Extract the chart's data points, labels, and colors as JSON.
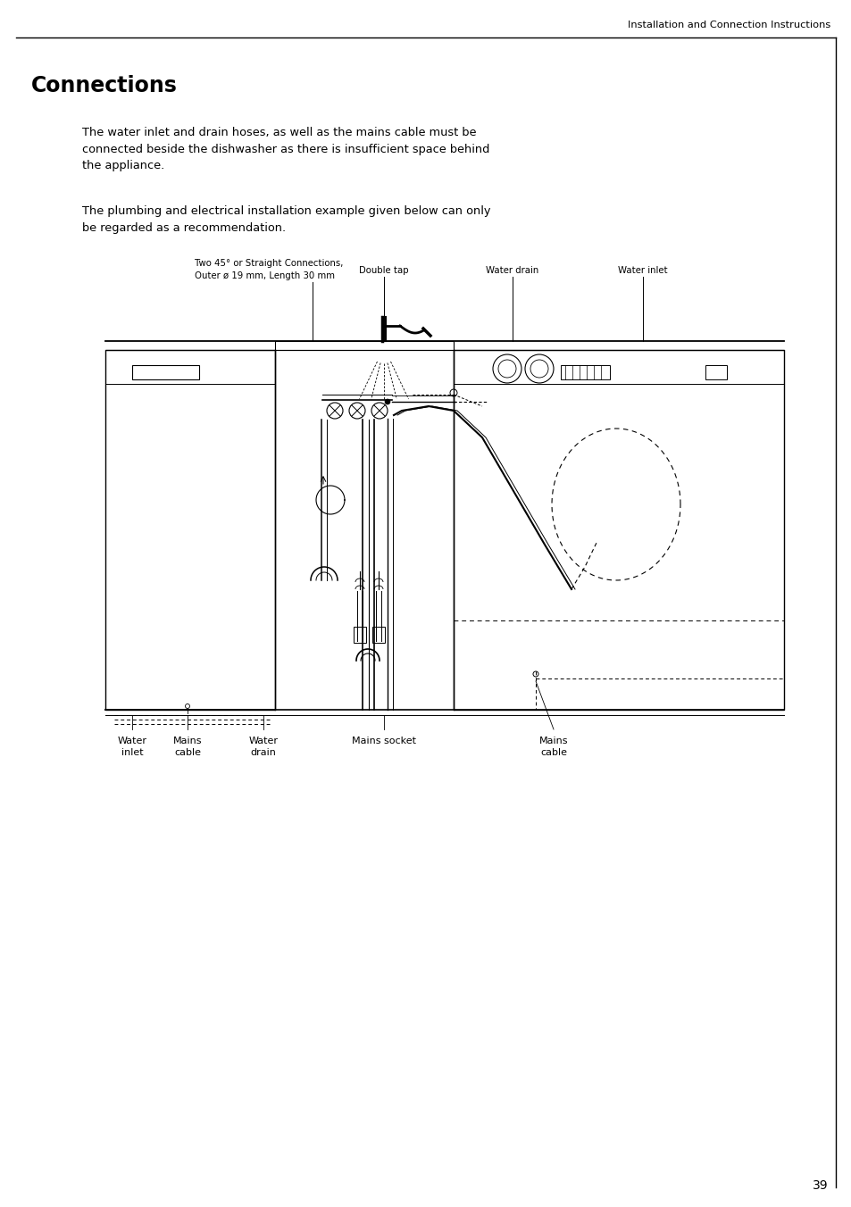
{
  "page_bg": "#ffffff",
  "header_text": "Installation and Connection Instructions",
  "title": "Connections",
  "body_text1": "The water inlet and drain hoses, as well as the mains cable must be\nconnected beside the dishwasher as there is insufficient space behind\nthe appliance.",
  "body_text2": "The plumbing and electrical installation example given below can only\nbe regarded as a recommendation.",
  "label_top_left_line1": "Two 45° or Straight Connections,",
  "label_top_left_line2": "Outer ø 19 mm, Length 30 mm",
  "label_double_tap": "Double tap",
  "label_water_drain_top": "Water drain",
  "label_water_inlet_top": "Water inlet",
  "label_water_inlet_bot": "Water\ninlet",
  "label_mains_cable_left": "Mains\ncable",
  "label_water_drain_bot": "Water\ndrain",
  "label_mains_socket": "Mains socket",
  "label_mains_cable_right": "Mains\ncable",
  "page_number": "39",
  "bg": "#ffffff",
  "black": "#000000"
}
